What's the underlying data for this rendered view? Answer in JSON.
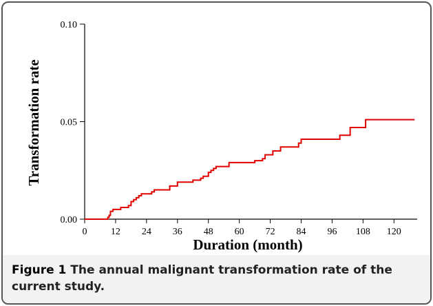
{
  "chart_data": {
    "type": "line",
    "step": "post",
    "y_label": "Transformation rate",
    "x_label": "Duration (month)",
    "caption_label": "Figure 1",
    "caption": "The annual malignant transformation rate of the current study.",
    "color": "#e00000",
    "x": [
      0,
      9,
      9.5,
      10,
      11,
      14,
      17,
      18,
      19,
      20,
      21,
      22,
      26,
      27,
      33,
      36,
      42,
      45,
      46,
      48,
      49,
      50,
      51,
      56,
      66,
      69,
      70,
      73,
      76,
      83,
      84,
      99,
      103,
      109,
      128
    ],
    "values": [
      0,
      0.001,
      0.002,
      0.004,
      0.005,
      0.006,
      0.007,
      0.009,
      0.01,
      0.011,
      0.012,
      0.013,
      0.014,
      0.015,
      0.017,
      0.019,
      0.02,
      0.021,
      0.022,
      0.024,
      0.025,
      0.026,
      0.027,
      0.029,
      0.03,
      0.031,
      0.033,
      0.035,
      0.037,
      0.039,
      0.041,
      0.043,
      0.047,
      0.051,
      0.051
    ],
    "xlim": [
      0,
      129
    ],
    "ylim": [
      0,
      0.1
    ],
    "xticks": [
      0,
      12,
      24,
      36,
      48,
      60,
      72,
      84,
      96,
      108,
      120
    ],
    "yticks": [
      {
        "value": 0,
        "label": "0.00"
      },
      {
        "value": 0.05,
        "label": "0.05"
      },
      {
        "value": 0.1,
        "label": "0.10"
      }
    ]
  }
}
